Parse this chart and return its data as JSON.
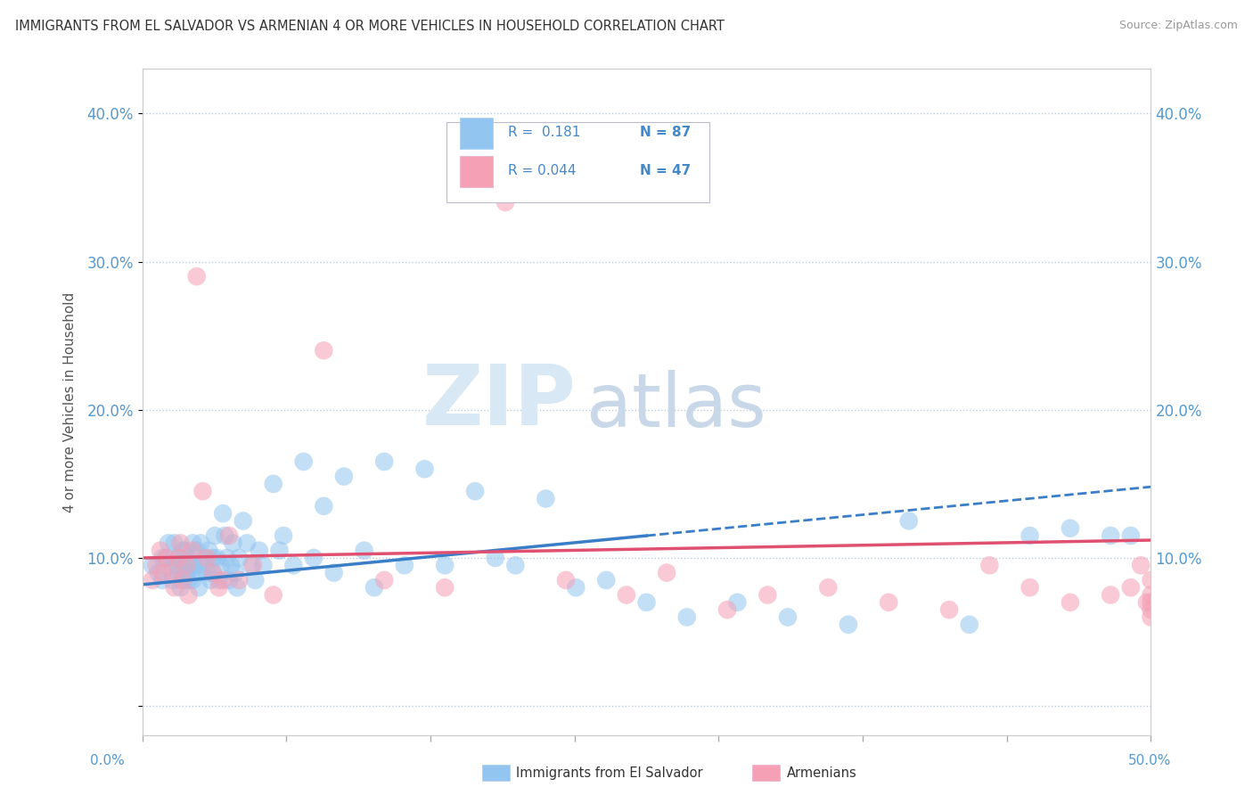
{
  "title": "IMMIGRANTS FROM EL SALVADOR VS ARMENIAN 4 OR MORE VEHICLES IN HOUSEHOLD CORRELATION CHART",
  "source": "Source: ZipAtlas.com",
  "ylabel": "4 or more Vehicles in Household",
  "yticks": [
    0.0,
    0.1,
    0.2,
    0.3,
    0.4
  ],
  "ytick_labels": [
    "",
    "10.0%",
    "20.0%",
    "30.0%",
    "40.0%"
  ],
  "xlim": [
    0.0,
    0.5
  ],
  "ylim": [
    -0.02,
    0.43
  ],
  "legend_r1": "R =  0.181",
  "legend_n1": "N = 87",
  "legend_r2": "R = 0.044",
  "legend_n2": "N = 47",
  "color_blue": "#92C5F0",
  "color_pink": "#F5A0B5",
  "color_blue_line": "#3A7EC8",
  "color_pink_line": "#E05070",
  "watermark_zip": "ZIP",
  "watermark_atlas": "atlas",
  "blue_x": [
    0.005,
    0.008,
    0.01,
    0.01,
    0.012,
    0.013,
    0.015,
    0.015,
    0.016,
    0.017,
    0.018,
    0.018,
    0.019,
    0.02,
    0.02,
    0.02,
    0.021,
    0.022,
    0.022,
    0.023,
    0.023,
    0.024,
    0.025,
    0.025,
    0.026,
    0.027,
    0.028,
    0.028,
    0.029,
    0.03,
    0.031,
    0.032,
    0.033,
    0.034,
    0.035,
    0.035,
    0.036,
    0.037,
    0.038,
    0.039,
    0.04,
    0.041,
    0.042,
    0.043,
    0.044,
    0.045,
    0.046,
    0.047,
    0.048,
    0.05,
    0.052,
    0.054,
    0.056,
    0.058,
    0.06,
    0.065,
    0.068,
    0.07,
    0.075,
    0.08,
    0.085,
    0.09,
    0.095,
    0.1,
    0.11,
    0.115,
    0.12,
    0.13,
    0.14,
    0.15,
    0.165,
    0.175,
    0.185,
    0.2,
    0.215,
    0.23,
    0.25,
    0.27,
    0.295,
    0.32,
    0.35,
    0.38,
    0.41,
    0.44,
    0.46,
    0.48,
    0.49
  ],
  "blue_y": [
    0.095,
    0.09,
    0.1,
    0.085,
    0.1,
    0.11,
    0.095,
    0.085,
    0.11,
    0.095,
    0.09,
    0.1,
    0.08,
    0.105,
    0.095,
    0.085,
    0.105,
    0.095,
    0.09,
    0.1,
    0.085,
    0.095,
    0.11,
    0.085,
    0.095,
    0.105,
    0.09,
    0.08,
    0.11,
    0.095,
    0.1,
    0.09,
    0.105,
    0.085,
    0.1,
    0.09,
    0.115,
    0.1,
    0.085,
    0.095,
    0.13,
    0.115,
    0.1,
    0.085,
    0.095,
    0.11,
    0.09,
    0.08,
    0.1,
    0.125,
    0.11,
    0.095,
    0.085,
    0.105,
    0.095,
    0.15,
    0.105,
    0.115,
    0.095,
    0.165,
    0.1,
    0.135,
    0.09,
    0.155,
    0.105,
    0.08,
    0.165,
    0.095,
    0.16,
    0.095,
    0.145,
    0.1,
    0.095,
    0.14,
    0.08,
    0.085,
    0.07,
    0.06,
    0.07,
    0.06,
    0.055,
    0.125,
    0.055,
    0.115,
    0.12,
    0.115,
    0.115
  ],
  "pink_x": [
    0.005,
    0.007,
    0.009,
    0.01,
    0.012,
    0.015,
    0.016,
    0.018,
    0.019,
    0.02,
    0.022,
    0.023,
    0.025,
    0.027,
    0.03,
    0.032,
    0.035,
    0.038,
    0.04,
    0.043,
    0.048,
    0.055,
    0.065,
    0.09,
    0.12,
    0.15,
    0.18,
    0.21,
    0.24,
    0.26,
    0.29,
    0.31,
    0.34,
    0.37,
    0.4,
    0.42,
    0.44,
    0.46,
    0.48,
    0.49,
    0.5,
    0.5,
    0.5,
    0.5,
    0.5,
    0.495,
    0.498
  ],
  "pink_y": [
    0.085,
    0.095,
    0.105,
    0.09,
    0.1,
    0.09,
    0.08,
    0.1,
    0.11,
    0.085,
    0.095,
    0.075,
    0.105,
    0.29,
    0.145,
    0.1,
    0.09,
    0.08,
    0.085,
    0.115,
    0.085,
    0.095,
    0.075,
    0.24,
    0.085,
    0.08,
    0.34,
    0.085,
    0.075,
    0.09,
    0.065,
    0.075,
    0.08,
    0.07,
    0.065,
    0.095,
    0.08,
    0.07,
    0.075,
    0.08,
    0.085,
    0.07,
    0.075,
    0.065,
    0.06,
    0.095,
    0.07
  ],
  "blue_trend_x": [
    0.0,
    0.5
  ],
  "blue_trend_y_start": 0.082,
  "blue_trend_y_end": 0.148,
  "pink_trend_y_start": 0.1,
  "pink_trend_y_end": 0.112
}
